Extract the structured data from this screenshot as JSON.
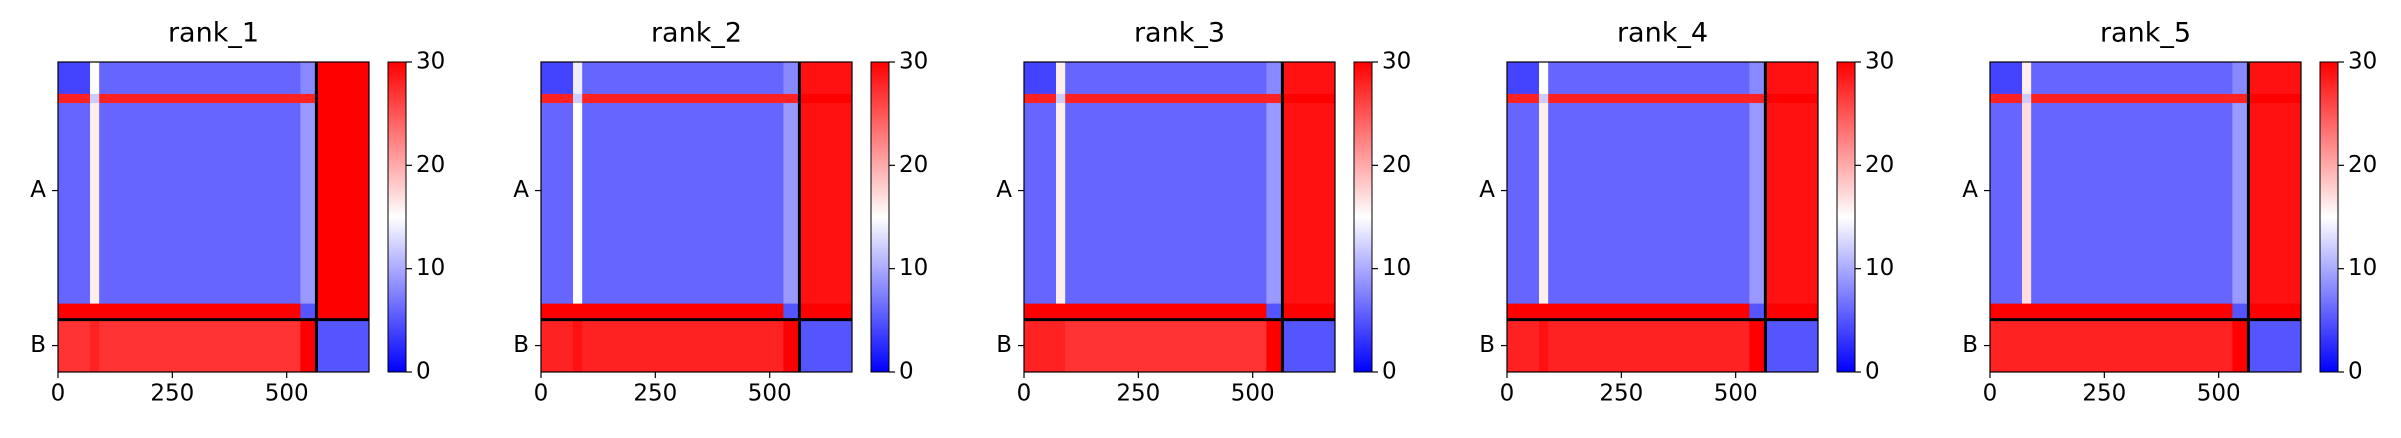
{
  "chart_data": [
    {
      "type": "heatmap",
      "title": "rank_1",
      "bins": [
        0,
        70,
        90,
        530,
        565,
        680
      ],
      "values": [
        [
          4,
          15,
          6,
          8,
          30
        ],
        [
          28,
          12,
          28,
          28,
          30
        ],
        [
          6,
          16,
          6,
          9,
          30
        ],
        [
          30,
          30,
          30,
          5,
          30
        ],
        [
          27,
          28,
          27,
          30,
          5
        ]
      ],
      "xlim": [
        0,
        680
      ],
      "xticks": [
        0,
        250,
        500
      ],
      "ylim": [
        680,
        0
      ],
      "yticks": [
        {
          "value": 282,
          "label": "A"
        },
        {
          "value": 622,
          "label": "B"
        }
      ],
      "chain_breaks": [
        565
      ],
      "colormap": [
        "#0000ff",
        "#ffffff",
        "#ff0000"
      ],
      "clim": [
        0,
        30
      ],
      "cticks": [
        0,
        10,
        20,
        30
      ]
    },
    {
      "type": "heatmap",
      "title": "rank_2",
      "bins": [
        0,
        70,
        90,
        530,
        565,
        680
      ],
      "values": [
        [
          4,
          14,
          6,
          8,
          29
        ],
        [
          28,
          12,
          28,
          28,
          30
        ],
        [
          6,
          15,
          6,
          9,
          29
        ],
        [
          30,
          30,
          30,
          5,
          30
        ],
        [
          28,
          29,
          28,
          30,
          5
        ]
      ],
      "xlim": [
        0,
        680
      ],
      "xticks": [
        0,
        250,
        500
      ],
      "ylim": [
        680,
        0
      ],
      "yticks": [
        {
          "value": 282,
          "label": "A"
        },
        {
          "value": 622,
          "label": "B"
        }
      ],
      "chain_breaks": [
        565
      ],
      "colormap": [
        "#0000ff",
        "#ffffff",
        "#ff0000"
      ],
      "clim": [
        0,
        30
      ],
      "cticks": [
        0,
        10,
        20,
        30
      ]
    },
    {
      "type": "heatmap",
      "title": "rank_3",
      "bins": [
        0,
        70,
        90,
        530,
        565,
        680
      ],
      "values": [
        [
          4,
          16,
          6,
          8,
          29
        ],
        [
          28,
          12,
          28,
          28,
          30
        ],
        [
          6,
          16,
          6,
          9,
          29
        ],
        [
          30,
          30,
          30,
          5,
          30
        ],
        [
          28,
          28,
          27,
          30,
          5
        ]
      ],
      "xlim": [
        0,
        680
      ],
      "xticks": [
        0,
        250,
        500
      ],
      "ylim": [
        680,
        0
      ],
      "yticks": [
        {
          "value": 282,
          "label": "A"
        },
        {
          "value": 622,
          "label": "B"
        }
      ],
      "chain_breaks": [
        565
      ],
      "colormap": [
        "#0000ff",
        "#ffffff",
        "#ff0000"
      ],
      "clim": [
        0,
        30
      ],
      "cticks": [
        0,
        10,
        20,
        30
      ]
    },
    {
      "type": "heatmap",
      "title": "rank_4",
      "bins": [
        0,
        70,
        90,
        530,
        565,
        680
      ],
      "values": [
        [
          4,
          15,
          6,
          8,
          29
        ],
        [
          28,
          12,
          28,
          28,
          30
        ],
        [
          6,
          16,
          6,
          9,
          29
        ],
        [
          30,
          30,
          30,
          5,
          30
        ],
        [
          28,
          29,
          28,
          30,
          5
        ]
      ],
      "xlim": [
        0,
        680
      ],
      "xticks": [
        0,
        250,
        500
      ],
      "ylim": [
        680,
        0
      ],
      "yticks": [
        {
          "value": 282,
          "label": "A"
        },
        {
          "value": 622,
          "label": "B"
        }
      ],
      "chain_breaks": [
        565
      ],
      "colormap": [
        "#0000ff",
        "#ffffff",
        "#ff0000"
      ],
      "clim": [
        0,
        30
      ],
      "cticks": [
        0,
        10,
        20,
        30
      ]
    },
    {
      "type": "heatmap",
      "title": "rank_5",
      "bins": [
        0,
        70,
        90,
        530,
        565,
        680
      ],
      "values": [
        [
          4,
          16,
          6,
          8,
          29
        ],
        [
          28,
          12,
          28,
          28,
          30
        ],
        [
          6,
          17,
          6,
          9,
          29
        ],
        [
          30,
          30,
          30,
          5,
          30
        ],
        [
          28,
          28,
          28,
          30,
          5
        ]
      ],
      "xlim": [
        0,
        680
      ],
      "xticks": [
        0,
        250,
        500
      ],
      "ylim": [
        680,
        0
      ],
      "yticks": [
        {
          "value": 282,
          "label": "A"
        },
        {
          "value": 622,
          "label": "B"
        }
      ],
      "chain_breaks": [
        565
      ],
      "colormap": [
        "#0000ff",
        "#ffffff",
        "#ff0000"
      ],
      "clim": [
        0,
        30
      ],
      "cticks": [
        0,
        10,
        20,
        30
      ]
    }
  ]
}
